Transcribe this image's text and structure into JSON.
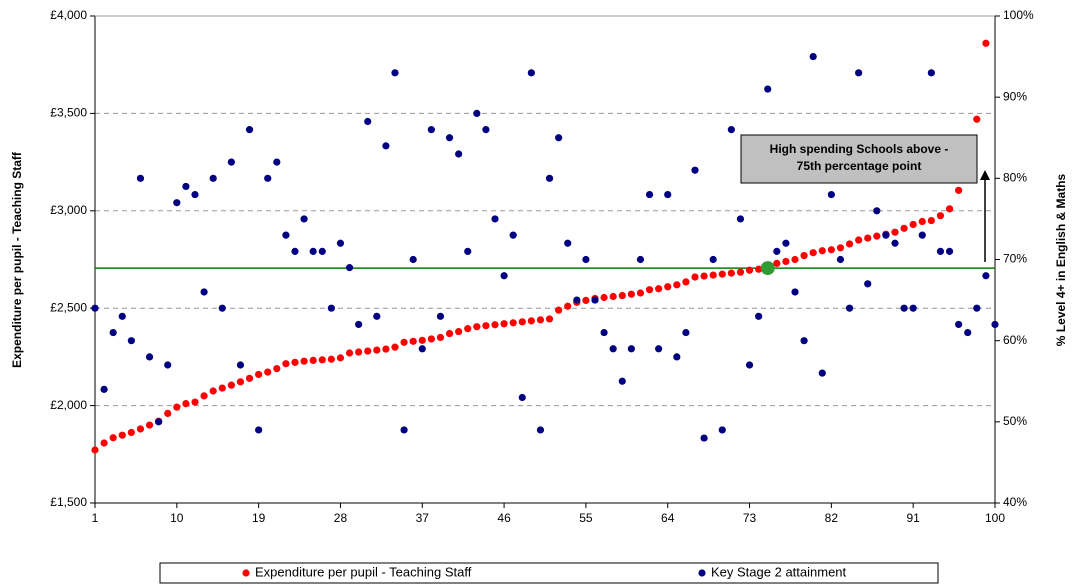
{
  "chart_data": {
    "type": "scatter",
    "y_label": "Expenditure per pupil - Teaching Staff",
    "y2_label": "% Level 4+ in English & Maths",
    "x": [
      1,
      2,
      3,
      4,
      5,
      6,
      7,
      8,
      9,
      10,
      11,
      12,
      13,
      14,
      15,
      16,
      17,
      18,
      19,
      20,
      21,
      22,
      23,
      24,
      25,
      26,
      27,
      28,
      29,
      30,
      31,
      32,
      33,
      34,
      35,
      36,
      37,
      38,
      39,
      40,
      41,
      42,
      43,
      44,
      45,
      46,
      47,
      48,
      49,
      50,
      51,
      52,
      53,
      54,
      55,
      56,
      57,
      58,
      59,
      60,
      61,
      62,
      63,
      64,
      65,
      66,
      67,
      68,
      69,
      70,
      71,
      72,
      73,
      74,
      75,
      76,
      77,
      78,
      79,
      80,
      81,
      82,
      83,
      84,
      85,
      86,
      87,
      88,
      89,
      90,
      91,
      92,
      93,
      94,
      95,
      96,
      97,
      98,
      99,
      100
    ],
    "xlim": [
      1,
      100
    ],
    "xticks": [
      1,
      10,
      19,
      28,
      37,
      46,
      55,
      64,
      73,
      82,
      91,
      100
    ],
    "ylim": [
      1500,
      4000
    ],
    "yticks": [
      {
        "value": 1500,
        "label": "£1,500"
      },
      {
        "value": 2000,
        "label": "£2,000"
      },
      {
        "value": 2500,
        "label": "£2,500"
      },
      {
        "value": 3000,
        "label": "£3,000"
      },
      {
        "value": 3500,
        "label": "£3,500"
      },
      {
        "value": 4000,
        "label": "£4,000"
      }
    ],
    "y2lim": [
      40,
      100
    ],
    "y2ticks": [
      {
        "value": 40,
        "label": "40%"
      },
      {
        "value": 50,
        "label": "50%"
      },
      {
        "value": 60,
        "label": "60%"
      },
      {
        "value": 70,
        "label": "70%"
      },
      {
        "value": 80,
        "label": "80%"
      },
      {
        "value": 90,
        "label": "90%"
      },
      {
        "value": 100,
        "label": "100%"
      }
    ],
    "grid": true,
    "series": [
      {
        "name": "Expenditure per pupil - Teaching Staff",
        "color": "#ff0000",
        "axis": "y",
        "values": [
          1772,
          1808,
          1835,
          1848,
          1862,
          1880,
          1900,
          1920,
          1960,
          1992,
          2010,
          2018,
          2050,
          2075,
          2090,
          2105,
          2122,
          2140,
          2160,
          2172,
          2190,
          2215,
          2222,
          2228,
          2232,
          2235,
          2238,
          2245,
          2270,
          2275,
          2280,
          2285,
          2290,
          2300,
          2325,
          2330,
          2335,
          2342,
          2350,
          2370,
          2380,
          2395,
          2405,
          2410,
          2415,
          2420,
          2425,
          2430,
          2435,
          2440,
          2445,
          2490,
          2510,
          2530,
          2540,
          2550,
          2555,
          2560,
          2565,
          2572,
          2578,
          2595,
          2600,
          2610,
          2620,
          2635,
          2660,
          2665,
          2670,
          2675,
          2680,
          2685,
          2695,
          2700,
          2706,
          2730,
          2740,
          2750,
          2770,
          2785,
          2795,
          2800,
          2810,
          2830,
          2850,
          2860,
          2870,
          2880,
          2890,
          2910,
          2930,
          2945,
          2950,
          2975,
          3010,
          3105,
          3220,
          3470,
          3860,
          null
        ]
      },
      {
        "name": "Key Stage 2 attainment",
        "color": "#000080",
        "axis": "y2",
        "values": [
          64,
          54,
          61,
          63,
          60,
          80,
          58,
          50,
          57,
          77,
          79,
          78,
          66,
          80,
          64,
          82,
          57,
          86,
          49,
          80,
          82,
          73,
          71,
          75,
          71,
          71,
          64,
          72,
          69,
          62,
          87,
          63,
          84,
          93,
          49,
          70,
          59,
          86,
          63,
          85,
          83,
          71,
          88,
          86,
          75,
          68,
          73,
          53,
          93,
          49,
          80,
          85,
          72,
          65,
          70,
          65,
          61,
          59,
          55,
          59,
          70,
          78,
          59,
          78,
          58,
          61,
          81,
          48,
          70,
          49,
          86,
          75,
          57,
          63,
          91,
          71,
          72,
          66,
          60,
          95,
          56,
          78,
          70,
          64,
          93,
          67,
          76,
          73,
          72,
          64,
          64,
          73,
          93,
          71,
          71,
          62,
          61,
          64,
          68,
          62
        ]
      }
    ],
    "reference_line": {
      "value": 2706,
      "color": "#008000"
    },
    "highlight": {
      "x": 75,
      "value": 2706,
      "color": "#339933"
    },
    "annotation": [
      "High spending Schools above -",
      "75th percentage point"
    ],
    "legend": "bottom"
  }
}
